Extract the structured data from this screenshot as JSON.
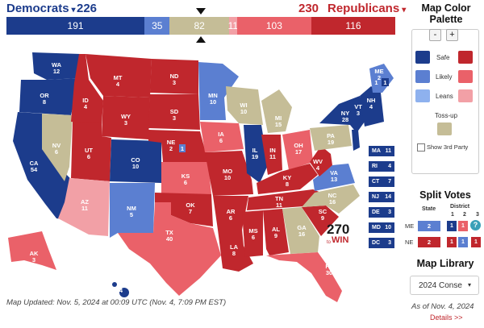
{
  "header": {
    "dem_dropdown": "Democrats",
    "dem_total": "226",
    "rep_total": "230",
    "rep_dropdown": "Republicans",
    "caret": "▾"
  },
  "ev_bar": [
    {
      "label": "191",
      "value": 191,
      "color": "#1c3c8c",
      "name": "safe-dem"
    },
    {
      "label": "35",
      "value": 35,
      "color": "#5b7fd1",
      "name": "likely-dem"
    },
    {
      "label": "",
      "value": 0,
      "color": "#8eb1ee",
      "name": "leans-dem"
    },
    {
      "label": "82",
      "value": 82,
      "color": "#c5bd97",
      "name": "tossup"
    },
    {
      "label": "11",
      "value": 11,
      "color": "#f2a0a6",
      "name": "leans-rep"
    },
    {
      "label": "103",
      "value": 103,
      "color": "#ea6169",
      "name": "likely-rep"
    },
    {
      "label": "116",
      "value": 116,
      "color": "#c0272d",
      "name": "safe-rep"
    }
  ],
  "colors": {
    "safe_d": "#1c3c8c",
    "likely_d": "#5b7fd1",
    "leans_d": "#8eb1ee",
    "tossup": "#c5bd97",
    "leans_r": "#f2a0a6",
    "likely_r": "#ea6169",
    "safe_r": "#c0272d"
  },
  "states": [
    {
      "abbr": "WA",
      "ev": "12"
    },
    {
      "abbr": "OR",
      "ev": "8"
    },
    {
      "abbr": "CA",
      "ev": "54"
    },
    {
      "abbr": "NV",
      "ev": "6"
    },
    {
      "abbr": "ID",
      "ev": "4"
    },
    {
      "abbr": "MT",
      "ev": "4"
    },
    {
      "abbr": "WY",
      "ev": "3"
    },
    {
      "abbr": "UT",
      "ev": "6"
    },
    {
      "abbr": "AZ",
      "ev": "11"
    },
    {
      "abbr": "CO",
      "ev": "10"
    },
    {
      "abbr": "NM",
      "ev": "5"
    },
    {
      "abbr": "ND",
      "ev": "3"
    },
    {
      "abbr": "SD",
      "ev": "3"
    },
    {
      "abbr": "NE",
      "ev": "2"
    },
    {
      "abbr": "KS",
      "ev": "6"
    },
    {
      "abbr": "OK",
      "ev": "7"
    },
    {
      "abbr": "TX",
      "ev": "40"
    },
    {
      "abbr": "MN",
      "ev": "10"
    },
    {
      "abbr": "IA",
      "ev": "6"
    },
    {
      "abbr": "MO",
      "ev": "10"
    },
    {
      "abbr": "AR",
      "ev": "6"
    },
    {
      "abbr": "LA",
      "ev": "8"
    },
    {
      "abbr": "WI",
      "ev": "10"
    },
    {
      "abbr": "IL",
      "ev": "19"
    },
    {
      "abbr": "MI",
      "ev": "15"
    },
    {
      "abbr": "IN",
      "ev": "11"
    },
    {
      "abbr": "OH",
      "ev": "17"
    },
    {
      "abbr": "KY",
      "ev": "8"
    },
    {
      "abbr": "TN",
      "ev": "11"
    },
    {
      "abbr": "MS",
      "ev": "6"
    },
    {
      "abbr": "AL",
      "ev": "9"
    },
    {
      "abbr": "GA",
      "ev": "16"
    },
    {
      "abbr": "FL",
      "ev": "30"
    },
    {
      "abbr": "SC",
      "ev": "9"
    },
    {
      "abbr": "NC",
      "ev": "16"
    },
    {
      "abbr": "VA",
      "ev": "13"
    },
    {
      "abbr": "WV",
      "ev": "4"
    },
    {
      "abbr": "PA",
      "ev": "19"
    },
    {
      "abbr": "NY",
      "ev": "28"
    },
    {
      "abbr": "VT",
      "ev": "3"
    },
    {
      "abbr": "NH",
      "ev": "4"
    },
    {
      "abbr": "ME",
      "ev": "2"
    },
    {
      "abbr": "AK",
      "ev": "3"
    },
    {
      "abbr": "HI",
      "ev": "4"
    }
  ],
  "small_states": [
    {
      "abbr": "MA",
      "ev": "11"
    },
    {
      "abbr": "RI",
      "ev": "4"
    },
    {
      "abbr": "CT",
      "ev": "7"
    },
    {
      "abbr": "NJ",
      "ev": "14"
    },
    {
      "abbr": "DE",
      "ev": "3"
    },
    {
      "abbr": "MD",
      "ev": "10"
    },
    {
      "abbr": "DC",
      "ev": "3"
    }
  ],
  "district_labels": {
    "ne2": "1",
    "me1": "1",
    "me2": "1"
  },
  "logo": {
    "number": "270",
    "suffix": "WIN",
    "to": "to"
  },
  "updated": "Map Updated: Nov. 5, 2024 at 00:09 UTC (Nov. 4, 7:09 PM EST)",
  "palette": {
    "title": "Map Color Palette",
    "minus": "-",
    "plus": "+",
    "safe": "Safe",
    "likely": "Likely",
    "leans": "Leans",
    "tossup": "Toss-up",
    "third_party": "Show 3rd Party"
  },
  "split_votes": {
    "title": "Split Votes",
    "state_hdr": "State",
    "district_hdr": "District",
    "district_nums": [
      "1",
      "2",
      "3"
    ],
    "help": "?",
    "rows": [
      {
        "state": "ME",
        "statewide": "2",
        "d": [
          "1",
          "1",
          ""
        ]
      },
      {
        "state": "NE",
        "statewide": "2",
        "d": [
          "1",
          "1",
          "1"
        ]
      }
    ]
  },
  "library": {
    "title": "Map Library",
    "selected": "2024 Conse",
    "as_of": "As of Nov. 4, 2024",
    "details": "Details >>"
  }
}
